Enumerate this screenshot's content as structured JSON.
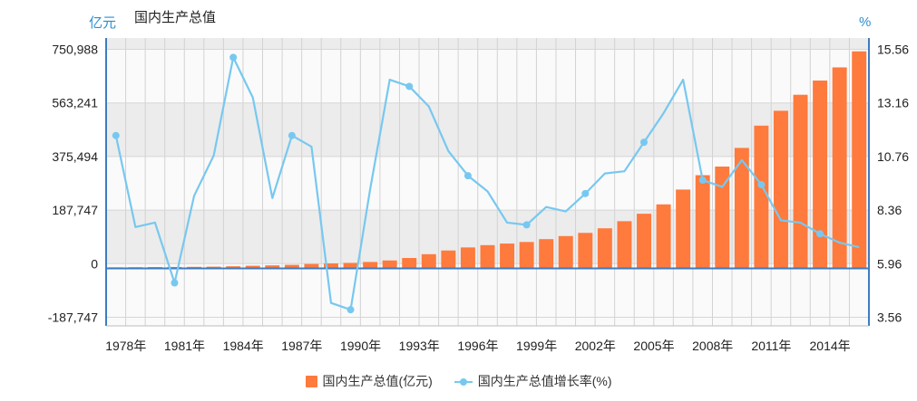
{
  "header": {
    "left_unit": "亿元",
    "title": "国内生产总值",
    "right_unit": "%"
  },
  "chart_data": {
    "type": "bar",
    "title": "国内生产总值",
    "x": [
      1978,
      1979,
      1980,
      1981,
      1982,
      1983,
      1984,
      1985,
      1986,
      1987,
      1988,
      1989,
      1990,
      1991,
      1992,
      1993,
      1994,
      1995,
      1996,
      1997,
      1998,
      1999,
      2000,
      2001,
      2002,
      2003,
      2004,
      2005,
      2006,
      2007,
      2008,
      2009,
      2010,
      2011,
      2012,
      2013,
      2014,
      2015,
      2016
    ],
    "x_tick_labels": [
      "1978年",
      "1981年",
      "1984年",
      "1987年",
      "1990年",
      "1993年",
      "1996年",
      "1999年",
      "2002年",
      "2005年",
      "2008年",
      "2011年",
      "2014年"
    ],
    "left_axis": {
      "unit": "亿元",
      "ticks": [
        "-187,747",
        "0",
        "187,747",
        "375,494",
        "563,241",
        "750,988"
      ],
      "range": [
        -187747,
        750988
      ]
    },
    "right_axis": {
      "unit": "%",
      "ticks": [
        "3.56",
        "5.96",
        "8.36",
        "10.76",
        "13.16",
        "15.56"
      ],
      "range": [
        3.56,
        15.56
      ]
    },
    "series": [
      {
        "name": "国内生产总值(亿元)",
        "type": "bar",
        "axis": "left",
        "color": "#ff7a3d",
        "values": [
          3679,
          4101,
          4588,
          4936,
          5373,
          6021,
          7279,
          9099,
          10376,
          12175,
          15180,
          17180,
          18873,
          22006,
          27195,
          35673,
          48638,
          61340,
          71814,
          79715,
          85196,
          90564,
          100280,
          110863,
          121717,
          137422,
          161840,
          187319,
          219439,
          270232,
          319516,
          349081,
          413030,
          489301,
          540367,
          595244,
          643974,
          689052,
          744127
        ]
      },
      {
        "name": "国内生产总值增长率(%)",
        "type": "line",
        "axis": "right",
        "color": "#77c8f0",
        "values": [
          11.7,
          7.6,
          7.8,
          5.1,
          9.0,
          10.8,
          15.2,
          13.4,
          8.9,
          11.7,
          11.2,
          4.2,
          3.9,
          9.3,
          14.2,
          13.9,
          13.0,
          11.0,
          9.9,
          9.2,
          7.8,
          7.7,
          8.5,
          8.3,
          9.1,
          10.0,
          10.1,
          11.4,
          12.7,
          14.2,
          9.7,
          9.4,
          10.6,
          9.5,
          7.9,
          7.8,
          7.3,
          6.9,
          6.7
        ],
        "marker_every": 3
      }
    ]
  }
}
